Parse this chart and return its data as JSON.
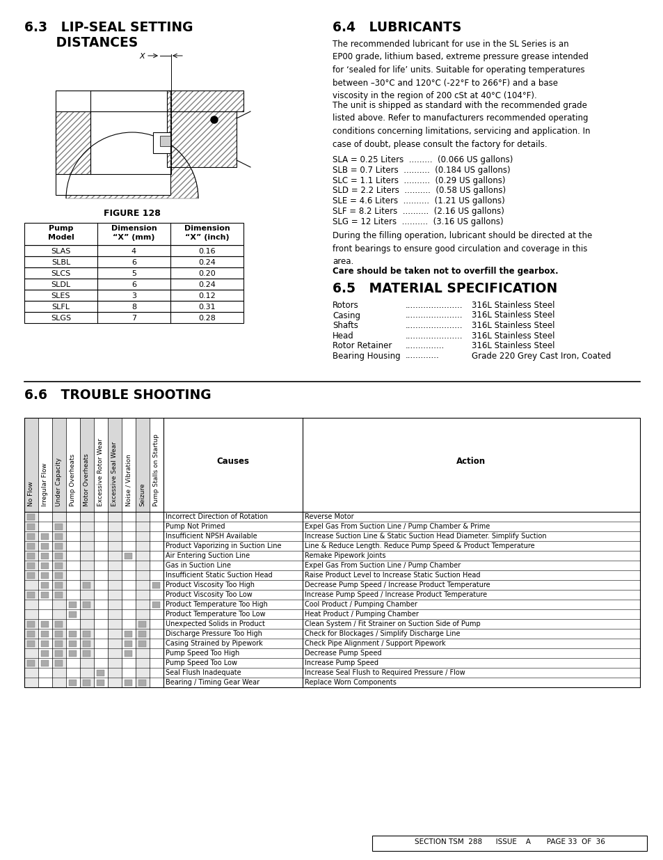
{
  "bg_color": "#ffffff",
  "section_63_line1": "6.3   LIP-SEAL SETTING",
  "section_63_line2": "       DISTANCES",
  "section_64_title": "6.4   LUBRICANTS",
  "section_65_title": "6.5   MATERIAL SPECIFICATION",
  "section_66_title": "6.6   TROUBLE SHOOTING",
  "figure_caption": "FIGURE 128",
  "table_headers": [
    "Pump\nModel",
    "Dimension\n“X” (mm)",
    "Dimension\n“X” (inch)"
  ],
  "table_rows": [
    [
      "SLAS",
      "4",
      "0.16"
    ],
    [
      "SLBL",
      "6",
      "0.24"
    ],
    [
      "SLCS",
      "5",
      "0.20"
    ],
    [
      "SLDL",
      "6",
      "0.24"
    ],
    [
      "SLES",
      "3",
      "0.12"
    ],
    [
      "SLFL",
      "8",
      "0.31"
    ],
    [
      "SLGS",
      "7",
      "0.28"
    ]
  ],
  "lubricants_list": [
    "SLA = 0.25 Liters  .........  (0.066 US gallons)",
    "SLB = 0.7 Liters  ..........  (0.184 US gallons)",
    "SLC = 1.1 Liters  ..........  (0.29 US gallons)",
    "SLD = 2.2 Liters  ..........  (0.58 US gallons)",
    "SLE = 4.6 Liters  ..........  (1.21 US gallons)",
    "SLF = 8.2 Liters  ..........  (2.16 US gallons)",
    "SLG = 12 Liters  ..........  (3.16 US gallons)"
  ],
  "material_spec": [
    [
      "Rotors",
      "316L Stainless Steel"
    ],
    [
      "Casing",
      "316L Stainless Steel"
    ],
    [
      "Shafts",
      "316L Stainless Steel"
    ],
    [
      "Head",
      "316L Stainless Steel"
    ],
    [
      "Rotor Retainer",
      "316L Stainless Steel"
    ],
    [
      "Bearing Housing",
      "Grade 220 Grey Cast Iron, Coated"
    ]
  ],
  "material_dots": [
    "......................",
    "......................",
    "......................",
    "......................",
    "...............",
    "............."
  ],
  "trouble_headers_rotated": [
    "No Flow",
    "Irregular Flow",
    "Under Capacity",
    "Pump Overheats",
    "Motor Overheats",
    "Excessive Rotor Wear",
    "Excessive Seal Wear",
    "Noise / Vibration",
    "Seizure",
    "Pump Stalls on Startup"
  ],
  "trouble_causes_actions": [
    [
      "Incorrect Direction of Rotation",
      "Reverse Motor"
    ],
    [
      "Pump Not Primed",
      "Expel Gas From Suction Line / Pump Chamber & Prime"
    ],
    [
      "Insufficient NPSH Available",
      "Increase Suction Line & Static Suction Head Diameter. Simplify Suction"
    ],
    [
      "Product Vaporizing in Suction Line",
      "Line & Reduce Length. Reduce Pump Speed & Product Temperature"
    ],
    [
      "Air Entering Suction Line",
      "Remake Pipework Joints"
    ],
    [
      "Gas in Suction Line",
      "Expel Gas From Suction Line / Pump Chamber"
    ],
    [
      "Insufficient Static Suction Head",
      "Raise Product Level to Increase Static Suction Head"
    ],
    [
      "Product Viscosity Too High",
      "Decrease Pump Speed / Increase Product Temperature"
    ],
    [
      "Product Viscosity Too Low",
      "Increase Pump Speed / Increase Product Temperature"
    ],
    [
      "Product Temperature Too High",
      "Cool Product / Pumping Chamber"
    ],
    [
      "Product Temperature Too Low",
      "Heat Product / Pumping Chamber"
    ],
    [
      "Unexpected Solids in Product",
      "Clean System / Fit Strainer on Suction Side of Pump"
    ],
    [
      "Discharge Pressure Too High",
      "Check for Blockages / Simplify Discharge Line"
    ],
    [
      "Casing Strained by Pipework",
      "Check Pipe Alignment / Support Pipework"
    ],
    [
      "Pump Speed Too High",
      "Decrease Pump Speed"
    ],
    [
      "Pump Speed Too Low",
      "Increase Pump Speed"
    ],
    [
      "Seal Flush Inadequate",
      "Increase Seal Flush to Required Pressure / Flow"
    ],
    [
      "Bearing / Timing Gear Wear",
      "Replace Worn Components"
    ]
  ],
  "trouble_checkmarks": [
    [
      1,
      0,
      0,
      0,
      0,
      0,
      0,
      0,
      0,
      0
    ],
    [
      1,
      0,
      1,
      0,
      0,
      0,
      0,
      0,
      0,
      0
    ],
    [
      1,
      1,
      1,
      0,
      0,
      0,
      0,
      0,
      0,
      0
    ],
    [
      1,
      1,
      1,
      0,
      0,
      0,
      0,
      0,
      0,
      0
    ],
    [
      1,
      1,
      1,
      0,
      0,
      0,
      0,
      1,
      0,
      0
    ],
    [
      1,
      1,
      1,
      0,
      0,
      0,
      0,
      0,
      0,
      0
    ],
    [
      1,
      1,
      1,
      0,
      0,
      0,
      0,
      0,
      0,
      0
    ],
    [
      0,
      1,
      1,
      0,
      1,
      0,
      0,
      0,
      0,
      1
    ],
    [
      1,
      1,
      1,
      0,
      0,
      0,
      0,
      0,
      0,
      0
    ],
    [
      0,
      0,
      0,
      1,
      1,
      0,
      0,
      0,
      0,
      1
    ],
    [
      0,
      0,
      0,
      1,
      0,
      0,
      0,
      0,
      0,
      0
    ],
    [
      1,
      1,
      1,
      0,
      0,
      0,
      0,
      0,
      1,
      0
    ],
    [
      1,
      1,
      1,
      1,
      1,
      0,
      0,
      1,
      1,
      0
    ],
    [
      1,
      1,
      1,
      1,
      1,
      0,
      0,
      1,
      1,
      0
    ],
    [
      0,
      1,
      1,
      1,
      1,
      0,
      0,
      1,
      0,
      0
    ],
    [
      1,
      1,
      1,
      0,
      0,
      0,
      0,
      0,
      0,
      0
    ],
    [
      0,
      0,
      0,
      0,
      0,
      1,
      0,
      0,
      0,
      0
    ],
    [
      0,
      0,
      0,
      1,
      1,
      1,
      0,
      1,
      1,
      0
    ]
  ],
  "footer_text": "SECTION TSM  288      ISSUE    A       PAGE 33  OF  36"
}
